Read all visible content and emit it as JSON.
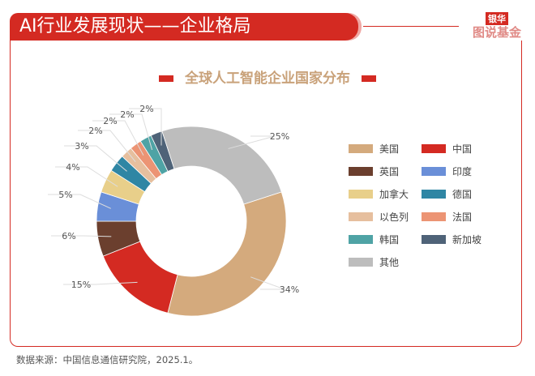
{
  "header": {
    "title": "AI行业发展现状——企业格局"
  },
  "logo": {
    "top": "银华",
    "bottom": "图说基金"
  },
  "source": "数据来源：中国信息通信研究院，2025.1。",
  "chart_data": {
    "type": "pie",
    "donut": true,
    "title": "全球人工智能企业国家分布",
    "legend_position": "right",
    "categories": [
      "美国",
      "中国",
      "英国",
      "印度",
      "加拿大",
      "德国",
      "以色列",
      "法国",
      "韩国",
      "新加坡",
      "其他"
    ],
    "values": [
      34,
      15,
      6,
      5,
      4,
      3,
      2,
      2,
      2,
      2,
      25
    ],
    "labels": [
      "34%",
      "15%",
      "6%",
      "5%",
      "4%",
      "3%",
      "2%",
      "2%",
      "2%",
      "2%",
      "25%"
    ],
    "colors": [
      "#d4aa7d",
      "#d42a22",
      "#6b3f2e",
      "#6a8fd8",
      "#e8cf8a",
      "#2f86a4",
      "#e6bf9e",
      "#ec9474",
      "#4fa3a5",
      "#4f6378",
      "#bdbdbd"
    ]
  }
}
